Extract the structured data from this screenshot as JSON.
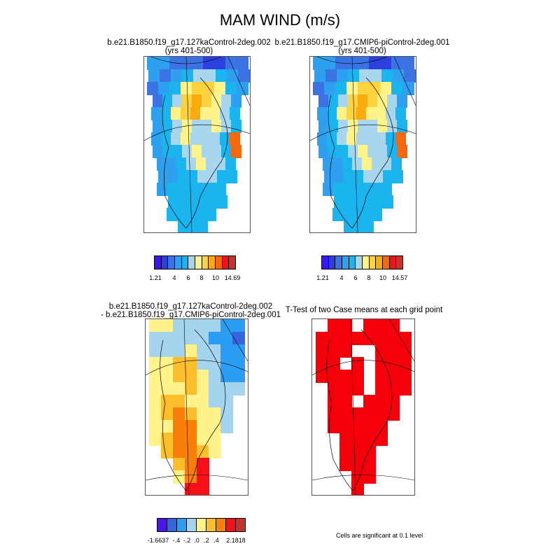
{
  "title": "MAM WIND (m/s)",
  "colors": {
    "wind_scale": [
      "#3b16f2",
      "#2e3fe0",
      "#3b73e5",
      "#2f9ff0",
      "#1ab4ef",
      "#a8d6ee",
      "#fff38a",
      "#fdd23c",
      "#fbab0f",
      "#f7670c",
      "#f5101a",
      "#c8322d"
    ],
    "diff_scale": [
      "#4a14ef",
      "#3464e0",
      "#2b9df2",
      "#a5d5ee",
      "#fff38a",
      "#fcbf2b",
      "#fa7e0a",
      "#f5101a",
      "#c8322d"
    ],
    "significance": "#f5000a"
  },
  "panels": [
    {
      "id": "127ka",
      "title_line1": "b.e21.B1850.f19_g17.127kaControl-2deg.002",
      "title_line2": "(yrs 401-500)",
      "colorbar_labels": [
        "1.21",
        "4",
        "6",
        "8",
        "10",
        "14.69"
      ]
    },
    {
      "id": "piControl",
      "title_line1": "b.e21.B1850.f19_g17.CMIP6-piControl-2deg.001",
      "title_line2": "(yrs 401-500)",
      "colorbar_labels": [
        "1.21",
        "4",
        "6",
        "8",
        "10",
        "14.57"
      ]
    },
    {
      "id": "difference",
      "title_line1": "b.e21.B1850.f19_g17.127kaControl-2deg.002",
      "title_line2": "- b.e21.B1850.f19_g17.CMIP6-piControl-2deg.001",
      "colorbar_labels": [
        "-1.6637",
        "-.4",
        "-.2",
        ".0",
        ".2",
        ".4",
        "2.1818"
      ]
    },
    {
      "id": "ttest",
      "title_line1": "T-Test of two Case means at each grid point",
      "note": "Cells are significant at 0.1 level"
    }
  ]
}
